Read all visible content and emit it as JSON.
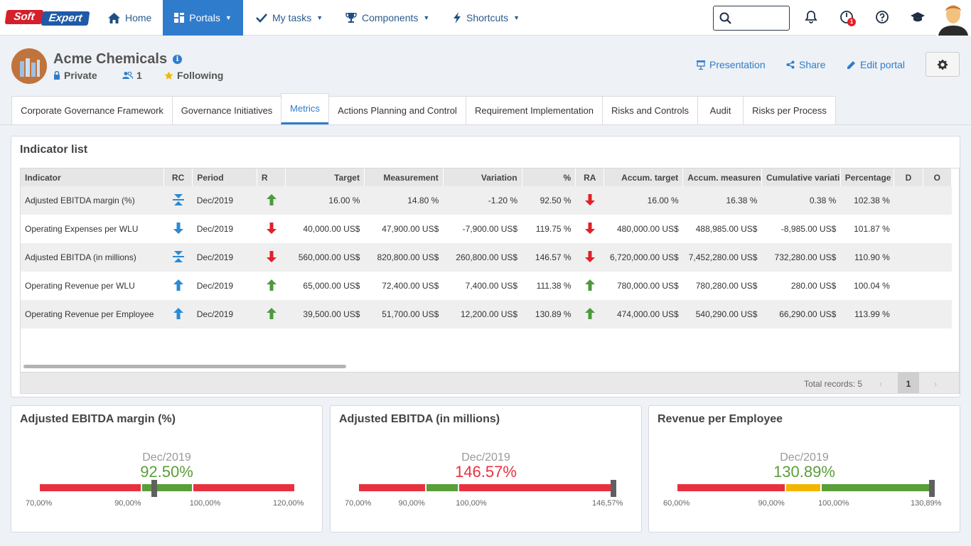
{
  "brand": {
    "part1": "Soft",
    "part2": "Expert"
  },
  "nav": {
    "home": "Home",
    "portals": "Portals",
    "my_tasks": "My tasks",
    "components": "Components",
    "shortcuts": "Shortcuts",
    "notification_count": "1"
  },
  "header": {
    "title": "Acme Chemicals",
    "privacy": "Private",
    "members": "1",
    "following": "Following",
    "presentation": "Presentation",
    "share": "Share",
    "edit_portal": "Edit portal"
  },
  "tabs": [
    "Corporate Governance Framework",
    "Governance Initiatives",
    "Metrics",
    "Actions Planning and Control",
    "Requirement Implementation",
    "Risks and Controls",
    "Audit",
    "Risks per Process"
  ],
  "active_tab": "Metrics",
  "indicator_list": {
    "title": "Indicator list",
    "columns": [
      "Indicator",
      "RC",
      "Period",
      "R",
      "Target",
      "Measurement",
      "Variation",
      "%",
      "RA",
      "Accum. target",
      "Accum. measuren",
      "Cumulative variati",
      "Percentage",
      "D",
      "O"
    ],
    "rows": [
      {
        "indicator": "Adjusted EBITDA margin (%)",
        "rc": "target",
        "period": "Dec/2019",
        "r": "up-green",
        "target": "16.00 %",
        "measurement": "14.80 %",
        "variation": "-1.20 %",
        "pct": "92.50 %",
        "ra": "down-red",
        "accum_target": "16.00 %",
        "accum_measurement": "16.38 %",
        "cumulative_variation": "0.38 %",
        "percentage": "102.38 %"
      },
      {
        "indicator": "Operating Expenses per WLU",
        "rc": "down",
        "period": "Dec/2019",
        "r": "down-red",
        "target": "40,000.00 US$",
        "measurement": "47,900.00 US$",
        "variation": "-7,900.00 US$",
        "pct": "119.75 %",
        "ra": "down-red",
        "accum_target": "480,000.00 US$",
        "accum_measurement": "488,985.00 US$",
        "cumulative_variation": "-8,985.00 US$",
        "percentage": "101.87 %"
      },
      {
        "indicator": "Adjusted EBITDA (in millions)",
        "rc": "target",
        "period": "Dec/2019",
        "r": "down-red",
        "target": "560,000.00 US$",
        "measurement": "820,800.00 US$",
        "variation": "260,800.00 US$",
        "pct": "146.57 %",
        "ra": "down-red",
        "accum_target": "6,720,000.00 US$",
        "accum_measurement": "7,452,280.00 US$",
        "cumulative_variation": "732,280.00 US$",
        "percentage": "110.90 %"
      },
      {
        "indicator": "Operating Revenue per WLU",
        "rc": "up",
        "period": "Dec/2019",
        "r": "up-green",
        "target": "65,000.00 US$",
        "measurement": "72,400.00 US$",
        "variation": "7,400.00 US$",
        "pct": "111.38 %",
        "ra": "up-green",
        "accum_target": "780,000.00 US$",
        "accum_measurement": "780,280.00 US$",
        "cumulative_variation": "280.00 US$",
        "percentage": "100.04 %"
      },
      {
        "indicator": "Operating Revenue per Employee",
        "rc": "up",
        "period": "Dec/2019",
        "r": "up-green",
        "target": "39,500.00 US$",
        "measurement": "51,700.00 US$",
        "variation": "12,200.00 US$",
        "pct": "130.89 %",
        "ra": "up-green",
        "accum_target": "474,000.00 US$",
        "accum_measurement": "540,290.00 US$",
        "cumulative_variation": "66,290.00 US$",
        "percentage": "113.99 %"
      }
    ],
    "total_records": "Total records: 5",
    "page": "1"
  },
  "gauges": [
    {
      "title": "Adjusted EBITDA margin (%)",
      "period": "Dec/2019",
      "value": "92.50%",
      "value_color": "#5a9e3a",
      "value_num": 92.5,
      "labels": [
        "70,00%",
        "90,00%",
        "100,00%",
        "120,00%"
      ],
      "range": [
        70,
        120
      ],
      "segments": [
        {
          "from": 70,
          "to": 90,
          "color": "#e8313f"
        },
        {
          "from": 90,
          "to": 100,
          "color": "#5a9e3a"
        },
        {
          "from": 100,
          "to": 120,
          "color": "#e8313f"
        }
      ]
    },
    {
      "title": "Adjusted EBITDA (in millions)",
      "period": "Dec/2019",
      "value": "146.57%",
      "value_color": "#e8313f",
      "value_num": 146.57,
      "labels": [
        "70,00%",
        "90,00%",
        "100,00%",
        "146,57%"
      ],
      "range": [
        70,
        146.57
      ],
      "segments": [
        {
          "from": 70,
          "to": 90,
          "color": "#e8313f"
        },
        {
          "from": 90,
          "to": 100,
          "color": "#5a9e3a"
        },
        {
          "from": 100,
          "to": 146.57,
          "color": "#e8313f"
        }
      ]
    },
    {
      "title": "Revenue per Employee",
      "period": "Dec/2019",
      "value": "130.89%",
      "value_color": "#5a9e3a",
      "value_num": 130.89,
      "labels": [
        "60,00%",
        "90,00%",
        "100,00%",
        "130,89%"
      ],
      "range": [
        60,
        130.89
      ],
      "segments": [
        {
          "from": 60,
          "to": 90,
          "color": "#e8313f"
        },
        {
          "from": 90,
          "to": 100,
          "color": "#f2b600"
        },
        {
          "from": 100,
          "to": 130.89,
          "color": "#5a9e3a"
        }
      ]
    }
  ]
}
